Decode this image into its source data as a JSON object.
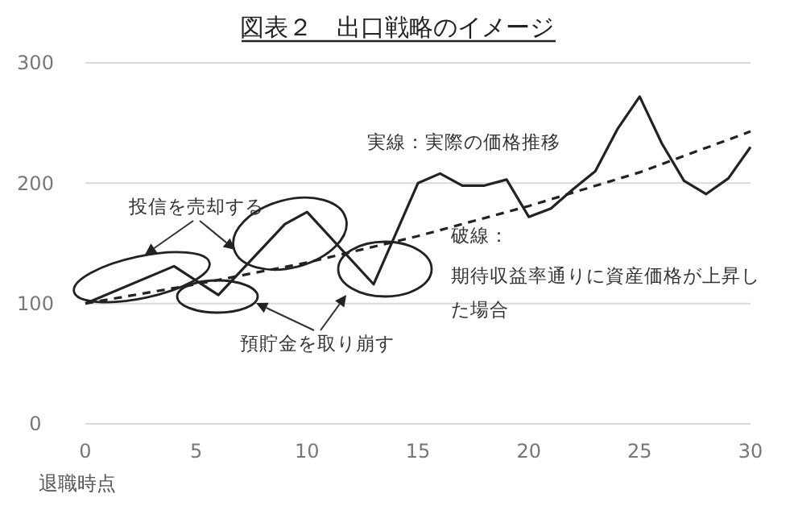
{
  "chart_data": {
    "type": "line",
    "title": "図表２　出口戦略のイメージ",
    "xlabel": "退職時点",
    "xlim": [
      0,
      30
    ],
    "xticks": [
      0,
      5,
      10,
      15,
      20,
      25,
      30
    ],
    "ylim": [
      0,
      300
    ],
    "yticks": [
      0,
      100,
      200,
      300
    ],
    "grid": "y",
    "marker": "none",
    "series": [
      {
        "color": "#222222",
        "line_style": "solid",
        "x": [
          0,
          4,
          6,
          9,
          10,
          13,
          15,
          16,
          17,
          18,
          19,
          20,
          21,
          22,
          23,
          24,
          25,
          26,
          27,
          28,
          29,
          30
        ],
        "values": [
          100,
          131,
          107,
          166,
          176,
          116,
          200,
          208,
          198,
          198,
          203,
          172,
          179,
          195,
          210,
          245,
          272,
          233,
          202,
          191,
          204,
          230
        ]
      },
      {
        "color": "#222222",
        "line_style": "dashed",
        "x": [
          0,
          5,
          10,
          15,
          20,
          25,
          30
        ],
        "values": [
          100,
          116,
          134,
          156,
          181,
          209,
          243
        ]
      }
    ],
    "annotations": [
      "実線：実際の価格推移",
      "破線：",
      "期待収益率通りに資産価格が上昇し",
      "た場合",
      "投信を売却する",
      "預貯金を取り崩す"
    ]
  }
}
